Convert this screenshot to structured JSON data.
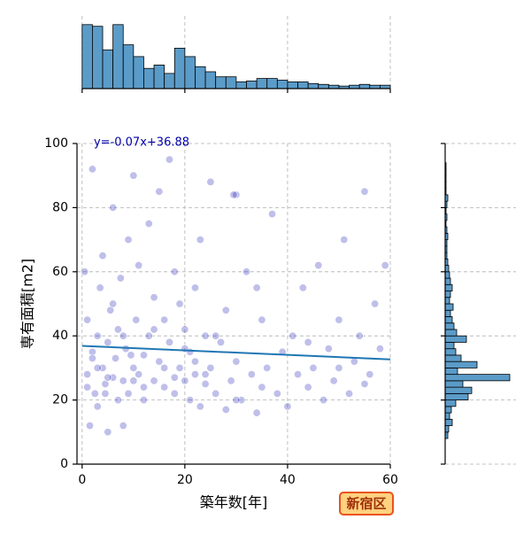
{
  "chart_data": [
    {
      "type": "scatter",
      "xlabel": "築年数[年]",
      "ylabel": "専有面積[m2]",
      "annotation": "y=-0.07x+36.88",
      "badge": "新宿区",
      "color": "#0000aa",
      "grid": true,
      "xlim": [
        -1,
        60
      ],
      "ylim": [
        0,
        100
      ],
      "xticks": [
        0,
        20,
        40,
        60
      ],
      "yticks": [
        0,
        20,
        40,
        60,
        80,
        100
      ],
      "regression": {
        "slope": -0.07,
        "intercept": 36.88,
        "color": "#1f77b4"
      },
      "x": [
        0.5,
        1,
        1,
        1.5,
        2,
        2,
        2.5,
        3,
        3,
        3.5,
        4,
        4,
        4.5,
        5,
        5,
        5.5,
        6,
        6,
        6.5,
        7,
        7,
        7.5,
        8,
        8,
        8.5,
        9,
        9,
        10,
        10,
        10.5,
        11,
        11,
        12,
        12,
        13,
        13,
        14,
        14,
        15,
        15,
        16,
        16,
        17,
        17,
        18,
        18,
        19,
        19,
        20,
        20,
        21,
        21,
        22,
        22,
        23,
        23,
        24,
        24,
        25,
        25,
        26,
        27,
        28,
        28,
        29,
        30,
        30,
        31,
        32,
        33,
        34,
        35,
        35,
        36,
        37,
        38,
        39,
        40,
        41,
        42,
        43,
        44,
        45,
        46,
        47,
        48,
        49,
        50,
        51,
        52,
        53,
        54,
        55,
        56,
        57,
        58,
        59,
        1,
        3,
        5,
        8,
        12,
        16,
        20,
        24,
        2,
        6,
        10,
        14,
        18,
        22,
        26,
        30,
        34,
        44,
        50,
        55,
        29.5,
        4.5,
        9.5
      ],
      "values": [
        60,
        28,
        45,
        12,
        35,
        92,
        22,
        40,
        18,
        55,
        30,
        65,
        25,
        10,
        38,
        48,
        27,
        80,
        33,
        20,
        42,
        58,
        26,
        12,
        36,
        70,
        22,
        30,
        90,
        45,
        28,
        62,
        34,
        20,
        40,
        75,
        26,
        52,
        32,
        85,
        24,
        45,
        38,
        95,
        22,
        60,
        30,
        50,
        26,
        42,
        20,
        35,
        28,
        55,
        18,
        70,
        25,
        40,
        30,
        88,
        22,
        38,
        17,
        48,
        26,
        84,
        32,
        20,
        60,
        28,
        16,
        24,
        45,
        30,
        78,
        22,
        35,
        18,
        40,
        28,
        55,
        24,
        30,
        62,
        20,
        36,
        26,
        45,
        70,
        22,
        32,
        40,
        85,
        28,
        50,
        36,
        62,
        24,
        30,
        27,
        40,
        24,
        30,
        36,
        28,
        33,
        50,
        26,
        42,
        27,
        32,
        40,
        20,
        55,
        38,
        30,
        25,
        84,
        22,
        34
      ]
    },
    {
      "type": "histogram",
      "orientation": "vertical",
      "color": "#5b9bc8",
      "grid": true,
      "xlim": [
        -1,
        60
      ],
      "ylim": [
        0,
        80
      ],
      "xticks": [
        0,
        20,
        40,
        60
      ],
      "bins": [
        0,
        2,
        4,
        6,
        8,
        10,
        12,
        14,
        16,
        18,
        20,
        22,
        24,
        26,
        28,
        30,
        32,
        34,
        36,
        38,
        40,
        42,
        44,
        46,
        48,
        50,
        52,
        54,
        56,
        58,
        60
      ],
      "values": [
        76,
        74,
        46,
        76,
        52,
        38,
        24,
        28,
        18,
        48,
        38,
        26,
        20,
        14,
        14,
        8,
        9,
        12,
        12,
        10,
        8,
        8,
        6,
        5,
        4,
        3,
        4,
        5,
        4,
        4
      ]
    },
    {
      "type": "histogram",
      "orientation": "horizontal",
      "color": "#5b9bc8",
      "grid": true,
      "ylim": [
        0,
        100
      ],
      "xlim": [
        0,
        80
      ],
      "yticks": [
        0,
        20,
        40,
        60,
        80,
        100
      ],
      "bins": [
        8,
        10,
        12,
        14,
        16,
        18,
        20,
        22,
        24,
        26,
        28,
        30,
        32,
        34,
        36,
        38,
        40,
        42,
        44,
        46,
        48,
        50,
        52,
        54,
        56,
        58,
        60,
        62,
        64,
        66,
        68,
        70,
        72,
        74,
        76,
        78,
        80,
        82,
        84,
        86,
        88,
        90,
        92,
        94,
        96
      ],
      "values": [
        3,
        4,
        8,
        5,
        7,
        12,
        26,
        30,
        20,
        73,
        14,
        36,
        18,
        12,
        10,
        24,
        13,
        10,
        8,
        6,
        9,
        5,
        6,
        8,
        6,
        5,
        4,
        3,
        2,
        2,
        2,
        3,
        2,
        1,
        2,
        1,
        2,
        3,
        1,
        1,
        1,
        1,
        1,
        0
      ]
    }
  ]
}
